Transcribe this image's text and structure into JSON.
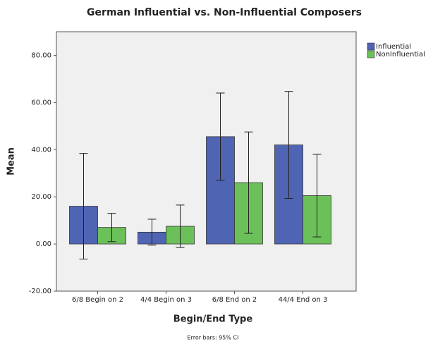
{
  "chart_data": {
    "type": "bar",
    "title": "German Influential vs. Non-Influential Composers",
    "x_label": "Begin/End Type",
    "y_label": "Mean",
    "note": "Error bars: 95% CI",
    "categories": [
      "6/8 Begin on 2",
      "4/4 Begin on 3",
      "6/8 End on 2",
      "44/4 End on 3"
    ],
    "series": [
      {
        "name": "Influential",
        "color": "#5064b4",
        "values": [
          16,
          5,
          45.5,
          42
        ],
        "errors": [
          22.4,
          5.5,
          18.5,
          22.7
        ]
      },
      {
        "name": "NonInfluential",
        "color": "#6cc05a",
        "values": [
          7,
          7.5,
          26,
          20.5
        ],
        "errors": [
          6,
          9,
          21.5,
          17.5
        ]
      }
    ],
    "ylim": [
      -20,
      90
    ],
    "yticks": [
      {
        "value": -20,
        "label": "-20.00"
      },
      {
        "value": 0,
        "label": "0.00"
      },
      {
        "value": 20,
        "label": "20.00"
      },
      {
        "value": 40,
        "label": "40.00"
      },
      {
        "value": 60,
        "label": "60.00"
      },
      {
        "value": 80,
        "label": "80.00"
      }
    ],
    "grid": false,
    "legend": "right"
  }
}
